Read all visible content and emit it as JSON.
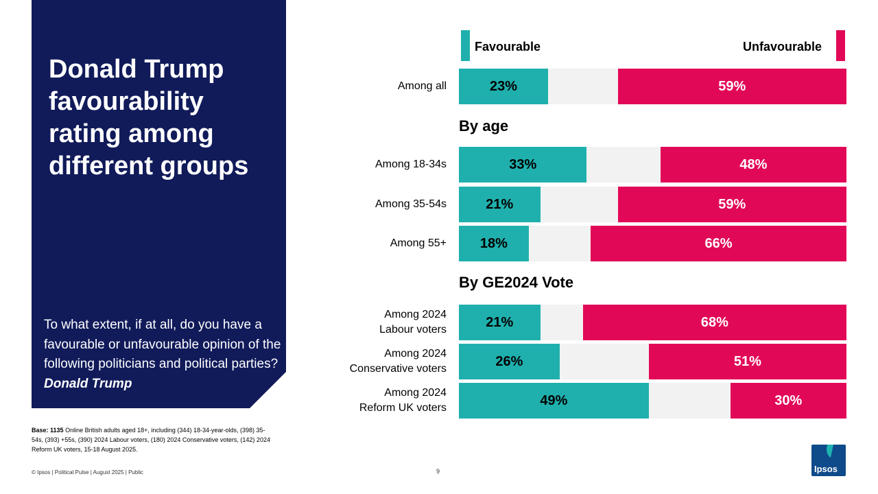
{
  "panel": {
    "title": "Donald Trump favourability rating among different groups",
    "question": "To what extent, if at all, do you have a favourable or unfavourable opinion of the following politicians and political parties?",
    "question_subject": "Donald Trump"
  },
  "base": {
    "label": "Base:",
    "count": "1135",
    "text": "Online British adults aged 18+, including (344) 18-34-year-olds, (398) 35-54s, (393) +55s, (390) 2024 Labour voters, (180) 2024 Conservative voters, (142) 2024 Reform UK voters, 15-18 August 2025."
  },
  "footer": {
    "text": "© Ipsos | Political Pulse | August 2025 | Public",
    "page_number": "9"
  },
  "logo": {
    "text": "Ipsos"
  },
  "colors": {
    "favourable": "#1fb0ad",
    "unfavourable": "#e20858",
    "neutral": "#f2f2f2",
    "panel": "#111b5a"
  },
  "chart_data": {
    "type": "bar",
    "orientation": "horizontal-stacked",
    "legend": [
      "Favourable",
      "Unfavourable"
    ],
    "sections": [
      {
        "heading": "",
        "rows": [
          {
            "label": "Among all",
            "favourable": 23,
            "unfavourable": 59
          }
        ]
      },
      {
        "heading": "By age",
        "rows": [
          {
            "label": "Among 18-34s",
            "favourable": 33,
            "unfavourable": 48
          },
          {
            "label": "Among 35-54s",
            "favourable": 21,
            "unfavourable": 59
          },
          {
            "label": "Among 55+",
            "favourable": 18,
            "unfavourable": 66
          }
        ]
      },
      {
        "heading": "By GE2024 Vote",
        "rows": [
          {
            "label": "Among 2024\nLabour voters",
            "favourable": 21,
            "unfavourable": 68
          },
          {
            "label": "Among 2024\nConservative voters",
            "favourable": 26,
            "unfavourable": 51
          },
          {
            "label": "Among 2024\nReform UK voters",
            "favourable": 49,
            "unfavourable": 30
          }
        ]
      }
    ],
    "value_suffix": "%",
    "xlim": [
      0,
      100
    ]
  }
}
